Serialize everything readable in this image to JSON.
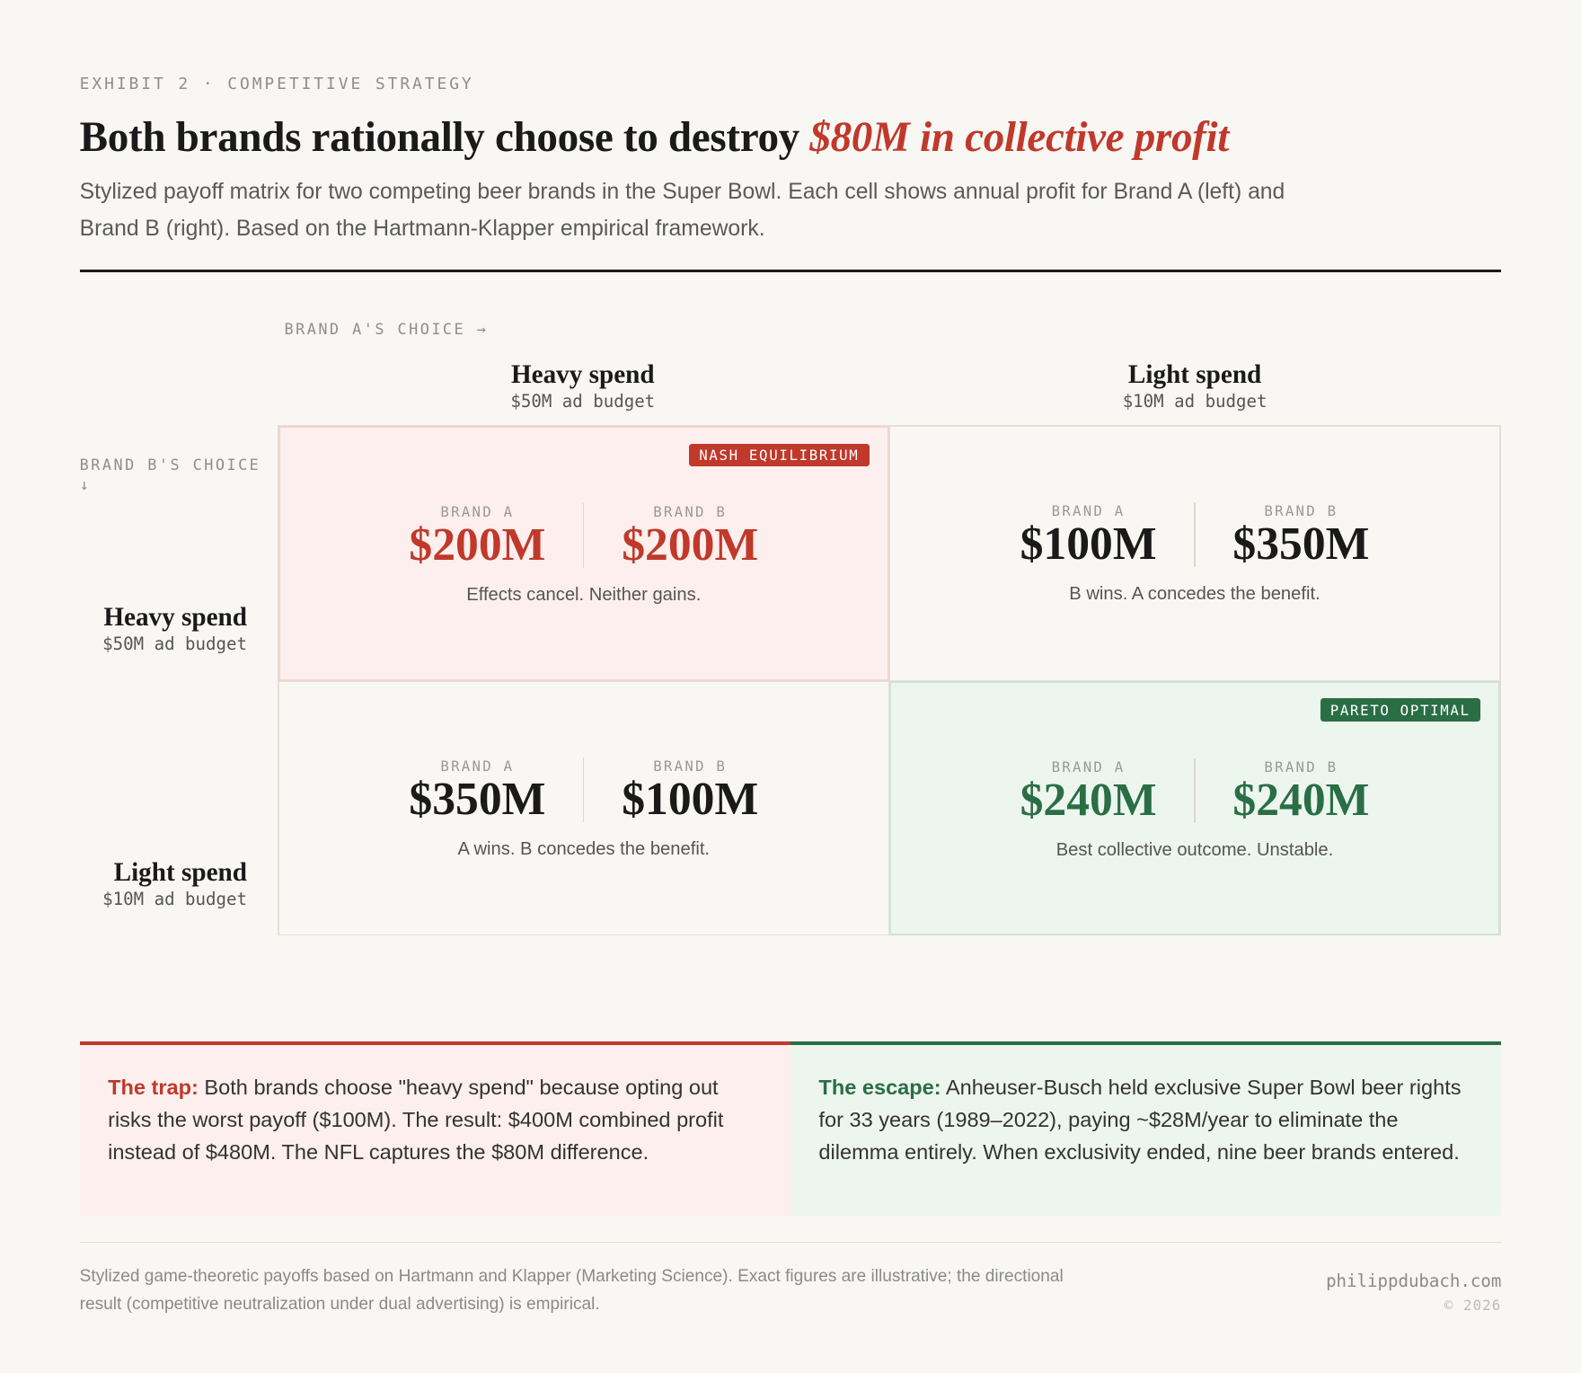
{
  "eyebrow": "EXHIBIT 2 · COMPETITIVE STRATEGY",
  "title": {
    "main": "Both brands rationally choose to destroy ",
    "highlight": "$80M in collective profit"
  },
  "subtitle": "Stylized payoff matrix for two competing beer brands in the Super Bowl. Each cell shows annual profit for Brand A (left) and Brand B (right). Based on the Hartmann-Klapper empirical framework.",
  "axis": {
    "brand_a": "BRAND A'S CHOICE →",
    "brand_b": "BRAND B'S CHOICE",
    "brand_b_arrow": "↓"
  },
  "columns": [
    {
      "label": "Heavy spend",
      "budget": "$50M ad budget"
    },
    {
      "label": "Light spend",
      "budget": "$10M ad budget"
    }
  ],
  "rows": [
    {
      "label": "Heavy spend",
      "budget": "$50M ad budget"
    },
    {
      "label": "Light spend",
      "budget": "$10M ad budget"
    }
  ],
  "brand_labels": {
    "a": "BRAND A",
    "b": "BRAND B"
  },
  "cells": [
    {
      "a": "$200M",
      "b": "$200M",
      "caption": "Effects cancel. Neither gains.",
      "badge": "NASH EQUILIBRIUM"
    },
    {
      "a": "$100M",
      "b": "$350M",
      "caption": "B wins. A concedes the benefit."
    },
    {
      "a": "$350M",
      "b": "$100M",
      "caption": "A wins. B concedes the benefit."
    },
    {
      "a": "$240M",
      "b": "$240M",
      "caption": "Best collective outcome. Unstable.",
      "badge": "PARETO OPTIMAL"
    }
  ],
  "colors": {
    "red": "#c0392b",
    "green": "#2a6e45",
    "ink": "#1a1a1a"
  },
  "notes": {
    "trap": {
      "lead": "The trap:",
      "text": " Both brands choose \"heavy spend\" because opting out risks the worst payoff ($100M). The result: $400M combined profit instead of $480M. The NFL captures the $80M difference."
    },
    "escape": {
      "lead": "The escape:",
      "text": " Anheuser-Busch held exclusive Super Bowl beer rights for 33 years (1989–2022), paying ~$28M/year to eliminate the dilemma entirely. When exclusivity ended, nine beer brands entered."
    }
  },
  "footer": {
    "note": "Stylized game-theoretic payoffs based on Hartmann and Klapper (Marketing Science). Exact figures are illustrative; the directional result (competitive neutralization under dual advertising) is empirical.",
    "site": "philippdubach.com",
    "copyright": "© 2026"
  }
}
